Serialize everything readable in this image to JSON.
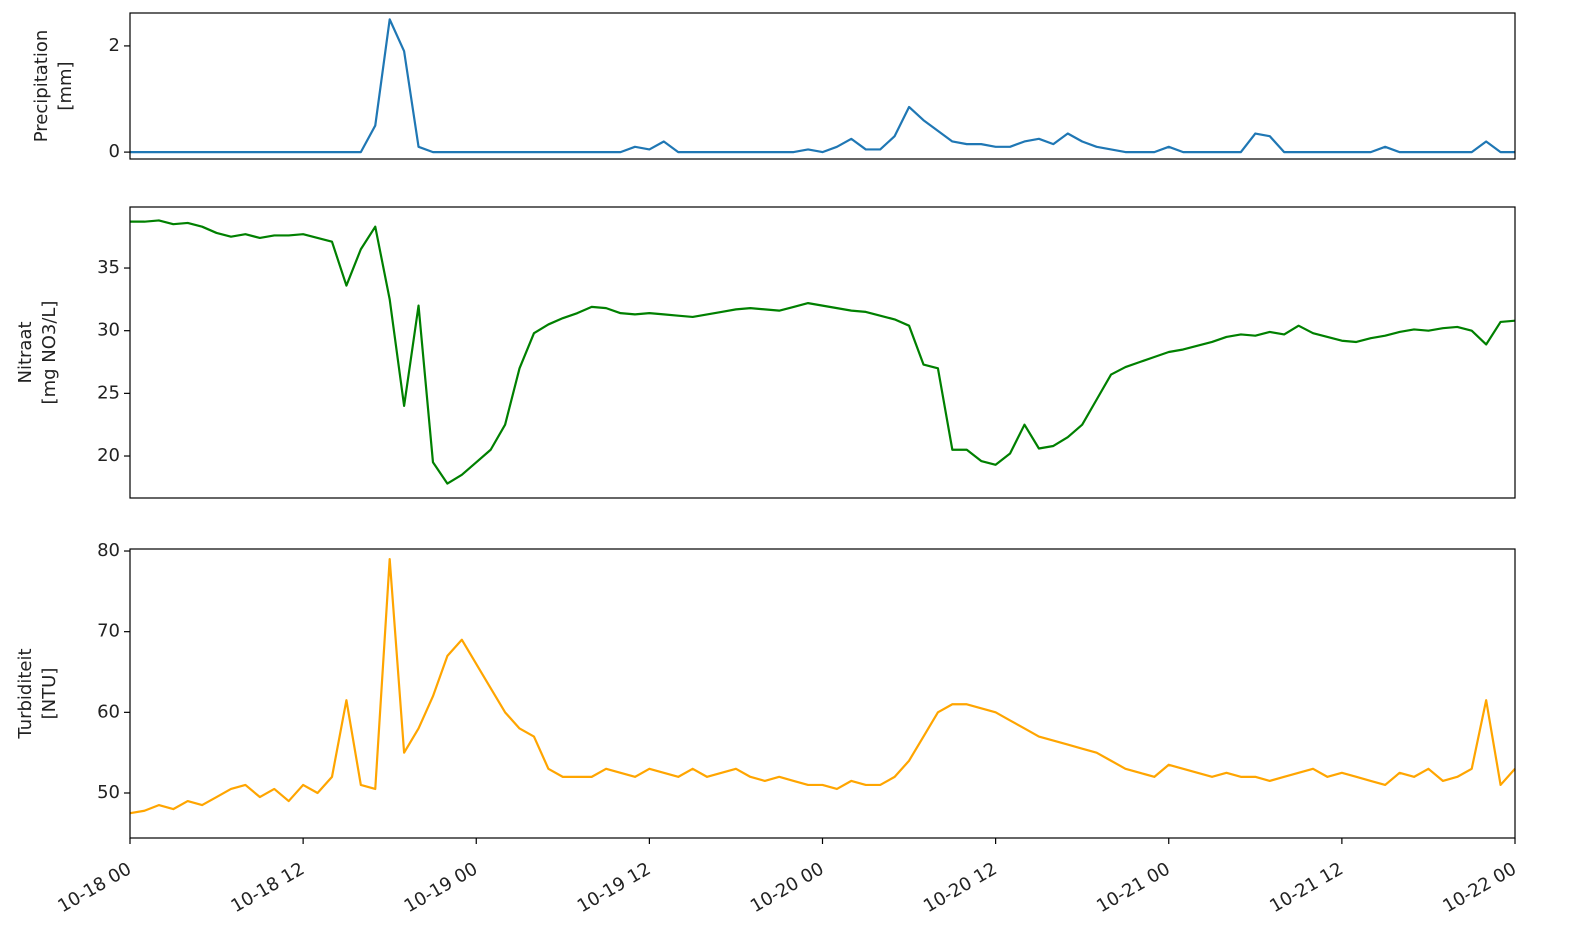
{
  "chart_data": [
    {
      "type": "line",
      "ylabel": [
        "Precipitation",
        "[mm]"
      ],
      "x": [
        "10-18 00",
        "10-18 01",
        "10-18 02",
        "10-18 03",
        "10-18 04",
        "10-18 05",
        "10-18 06",
        "10-18 07",
        "10-18 08",
        "10-18 09",
        "10-18 10",
        "10-18 11",
        "10-18 12",
        "10-18 13",
        "10-18 14",
        "10-18 15",
        "10-18 16",
        "10-18 17",
        "10-18 18",
        "10-18 19",
        "10-18 20",
        "10-18 21",
        "10-18 22",
        "10-18 23",
        "10-19 00",
        "10-19 01",
        "10-19 02",
        "10-19 03",
        "10-19 04",
        "10-19 05",
        "10-19 06",
        "10-19 07",
        "10-19 08",
        "10-19 09",
        "10-19 10",
        "10-19 11",
        "10-19 12",
        "10-19 13",
        "10-19 14",
        "10-19 15",
        "10-19 16",
        "10-19 17",
        "10-19 18",
        "10-19 19",
        "10-19 20",
        "10-19 21",
        "10-19 22",
        "10-19 23",
        "10-20 00",
        "10-20 01",
        "10-20 02",
        "10-20 03",
        "10-20 04",
        "10-20 05",
        "10-20 06",
        "10-20 07",
        "10-20 08",
        "10-20 09",
        "10-20 10",
        "10-20 11",
        "10-20 12",
        "10-20 13",
        "10-20 14",
        "10-20 15",
        "10-20 16",
        "10-20 17",
        "10-20 18",
        "10-20 19",
        "10-20 20",
        "10-20 21",
        "10-20 22",
        "10-20 23",
        "10-21 00",
        "10-21 01",
        "10-21 02",
        "10-21 03",
        "10-21 04",
        "10-21 05",
        "10-21 06",
        "10-21 07",
        "10-21 08",
        "10-21 09",
        "10-21 10",
        "10-21 11",
        "10-21 12",
        "10-21 13",
        "10-21 14",
        "10-21 15",
        "10-21 16",
        "10-21 17",
        "10-21 18",
        "10-21 19",
        "10-21 20",
        "10-21 21",
        "10-21 22",
        "10-21 23",
        "10-22 00"
      ],
      "series": [
        {
          "color": "#1f77b4",
          "values": [
            0,
            0,
            0,
            0,
            0,
            0,
            0,
            0,
            0,
            0,
            0,
            0,
            0,
            0,
            0,
            0,
            0,
            0.5,
            2.5,
            1.9,
            0.1,
            0,
            0,
            0,
            0,
            0,
            0,
            0,
            0,
            0,
            0,
            0,
            0,
            0,
            0,
            0.1,
            0.05,
            0.2,
            0,
            0,
            0,
            0,
            0,
            0,
            0,
            0,
            0,
            0.05,
            0,
            0.1,
            0.25,
            0.05,
            0.05,
            0.3,
            0.85,
            0.6,
            0.4,
            0.2,
            0.15,
            0.15,
            0.1,
            0.1,
            0.2,
            0.25,
            0.15,
            0.35,
            0.2,
            0.1,
            0.05,
            0,
            0,
            0,
            0.1,
            0,
            0,
            0,
            0,
            0,
            0.35,
            0.3,
            0,
            0,
            0,
            0,
            0,
            0,
            0,
            0.1,
            0,
            0,
            0,
            0,
            0,
            0,
            0.2,
            0,
            0
          ]
        }
      ],
      "ylim": [
        -0.13,
        2.62
      ],
      "yticks": [
        0,
        2
      ]
    },
    {
      "type": "line",
      "ylabel": [
        "Nitraat",
        "[mg NO3/L]"
      ],
      "x": [
        "10-18 00",
        "10-18 01",
        "10-18 02",
        "10-18 03",
        "10-18 04",
        "10-18 05",
        "10-18 06",
        "10-18 07",
        "10-18 08",
        "10-18 09",
        "10-18 10",
        "10-18 11",
        "10-18 12",
        "10-18 13",
        "10-18 14",
        "10-18 15",
        "10-18 16",
        "10-18 17",
        "10-18 18",
        "10-18 19",
        "10-18 20",
        "10-18 21",
        "10-18 22",
        "10-18 23",
        "10-19 00",
        "10-19 01",
        "10-19 02",
        "10-19 03",
        "10-19 04",
        "10-19 05",
        "10-19 06",
        "10-19 07",
        "10-19 08",
        "10-19 09",
        "10-19 10",
        "10-19 11",
        "10-19 12",
        "10-19 13",
        "10-19 14",
        "10-19 15",
        "10-19 16",
        "10-19 17",
        "10-19 18",
        "10-19 19",
        "10-19 20",
        "10-19 21",
        "10-19 22",
        "10-19 23",
        "10-20 00",
        "10-20 01",
        "10-20 02",
        "10-20 03",
        "10-20 04",
        "10-20 05",
        "10-20 06",
        "10-20 07",
        "10-20 08",
        "10-20 09",
        "10-20 10",
        "10-20 11",
        "10-20 12",
        "10-20 13",
        "10-20 14",
        "10-20 15",
        "10-20 16",
        "10-20 17",
        "10-20 18",
        "10-20 19",
        "10-20 20",
        "10-20 21",
        "10-20 22",
        "10-20 23",
        "10-21 00",
        "10-21 01",
        "10-21 02",
        "10-21 03",
        "10-21 04",
        "10-21 05",
        "10-21 06",
        "10-21 07",
        "10-21 08",
        "10-21 09",
        "10-21 10",
        "10-21 11",
        "10-21 12",
        "10-21 13",
        "10-21 14",
        "10-21 15",
        "10-21 16",
        "10-21 17",
        "10-21 18",
        "10-21 19",
        "10-21 20",
        "10-21 21",
        "10-21 22",
        "10-21 23",
        "10-22 00"
      ],
      "series": [
        {
          "color": "#008000",
          "values": [
            38.7,
            38.7,
            38.8,
            38.5,
            38.6,
            38.3,
            37.8,
            37.5,
            37.7,
            37.4,
            37.6,
            37.6,
            37.7,
            37.4,
            37.1,
            33.6,
            36.5,
            38.3,
            32.5,
            24,
            32,
            19.5,
            17.8,
            18.5,
            19.5,
            20.5,
            22.5,
            27,
            29.8,
            30.5,
            31,
            31.4,
            31.9,
            31.8,
            31.4,
            31.3,
            31.4,
            31.3,
            31.2,
            31.1,
            31.3,
            31.5,
            31.7,
            31.8,
            31.7,
            31.6,
            31.9,
            32.2,
            32,
            31.8,
            31.6,
            31.5,
            31.2,
            30.9,
            30.4,
            27.3,
            27,
            20.5,
            20.5,
            19.6,
            19.3,
            20.2,
            22.5,
            20.6,
            20.8,
            21.5,
            22.5,
            24.5,
            26.5,
            27.1,
            27.5,
            27.9,
            28.3,
            28.5,
            28.8,
            29.1,
            29.5,
            29.7,
            29.6,
            29.9,
            29.7,
            30.4,
            29.8,
            29.5,
            29.2,
            29.1,
            29.4,
            29.6,
            29.9,
            30.1,
            30,
            30.2,
            30.3,
            30,
            28.9,
            30.7,
            30.8
          ]
        }
      ],
      "ylim": [
        16.65,
        39.87
      ],
      "yticks": [
        20,
        25,
        30,
        35
      ]
    },
    {
      "type": "line",
      "ylabel": [
        "Turbiditeit",
        "[NTU]"
      ],
      "x": [
        "10-18 00",
        "10-18 01",
        "10-18 02",
        "10-18 03",
        "10-18 04",
        "10-18 05",
        "10-18 06",
        "10-18 07",
        "10-18 08",
        "10-18 09",
        "10-18 10",
        "10-18 11",
        "10-18 12",
        "10-18 13",
        "10-18 14",
        "10-18 15",
        "10-18 16",
        "10-18 17",
        "10-18 18",
        "10-18 19",
        "10-18 20",
        "10-18 21",
        "10-18 22",
        "10-18 23",
        "10-19 00",
        "10-19 01",
        "10-19 02",
        "10-19 03",
        "10-19 04",
        "10-19 05",
        "10-19 06",
        "10-19 07",
        "10-19 08",
        "10-19 09",
        "10-19 10",
        "10-19 11",
        "10-19 12",
        "10-19 13",
        "10-19 14",
        "10-19 15",
        "10-19 16",
        "10-19 17",
        "10-19 18",
        "10-19 19",
        "10-19 20",
        "10-19 21",
        "10-19 22",
        "10-19 23",
        "10-20 00",
        "10-20 01",
        "10-20 02",
        "10-20 03",
        "10-20 04",
        "10-20 05",
        "10-20 06",
        "10-20 07",
        "10-20 08",
        "10-20 09",
        "10-20 10",
        "10-20 11",
        "10-20 12",
        "10-20 13",
        "10-20 14",
        "10-20 15",
        "10-20 16",
        "10-20 17",
        "10-20 18",
        "10-20 19",
        "10-20 20",
        "10-20 21",
        "10-20 22",
        "10-20 23",
        "10-21 00",
        "10-21 01",
        "10-21 02",
        "10-21 03",
        "10-21 04",
        "10-21 05",
        "10-21 06",
        "10-21 07",
        "10-21 08",
        "10-21 09",
        "10-21 10",
        "10-21 11",
        "10-21 12",
        "10-21 13",
        "10-21 14",
        "10-21 15",
        "10-21 16",
        "10-21 17",
        "10-21 18",
        "10-21 19",
        "10-21 20",
        "10-21 21",
        "10-21 22",
        "10-21 23",
        "10-22 00"
      ],
      "series": [
        {
          "color": "#ffa500",
          "values": [
            47.5,
            47.8,
            48.5,
            48,
            49,
            48.5,
            49.5,
            50.5,
            51,
            49.5,
            50.5,
            49,
            51,
            50,
            52,
            61.5,
            51,
            50.5,
            79,
            55,
            58,
            62,
            67,
            69,
            66,
            63,
            60,
            58,
            57,
            53,
            52,
            52,
            52,
            53,
            52.5,
            52,
            53,
            52.5,
            52,
            53,
            52,
            52.5,
            53,
            52,
            51.5,
            52,
            51.5,
            51,
            51,
            50.5,
            51.5,
            51,
            51,
            52,
            54,
            57,
            60,
            61,
            61,
            60.5,
            60,
            59,
            58,
            57,
            56.5,
            56,
            55.5,
            55,
            54,
            53,
            52.5,
            52,
            53.5,
            53,
            52.5,
            52,
            52.5,
            52,
            52,
            51.5,
            52,
            52.5,
            53,
            52,
            52.5,
            52,
            51.5,
            51,
            52.5,
            52,
            53,
            51.5,
            52,
            53,
            61.5,
            51,
            53
          ]
        }
      ],
      "ylim": [
        44.42,
        80.25
      ],
      "yticks": [
        50,
        60,
        70,
        80
      ],
      "xticks": [
        "10-18 00",
        "10-18 12",
        "10-19 00",
        "10-19 12",
        "10-20 00",
        "10-20 12",
        "10-21 00",
        "10-21 12",
        "10-22 00"
      ]
    }
  ]
}
